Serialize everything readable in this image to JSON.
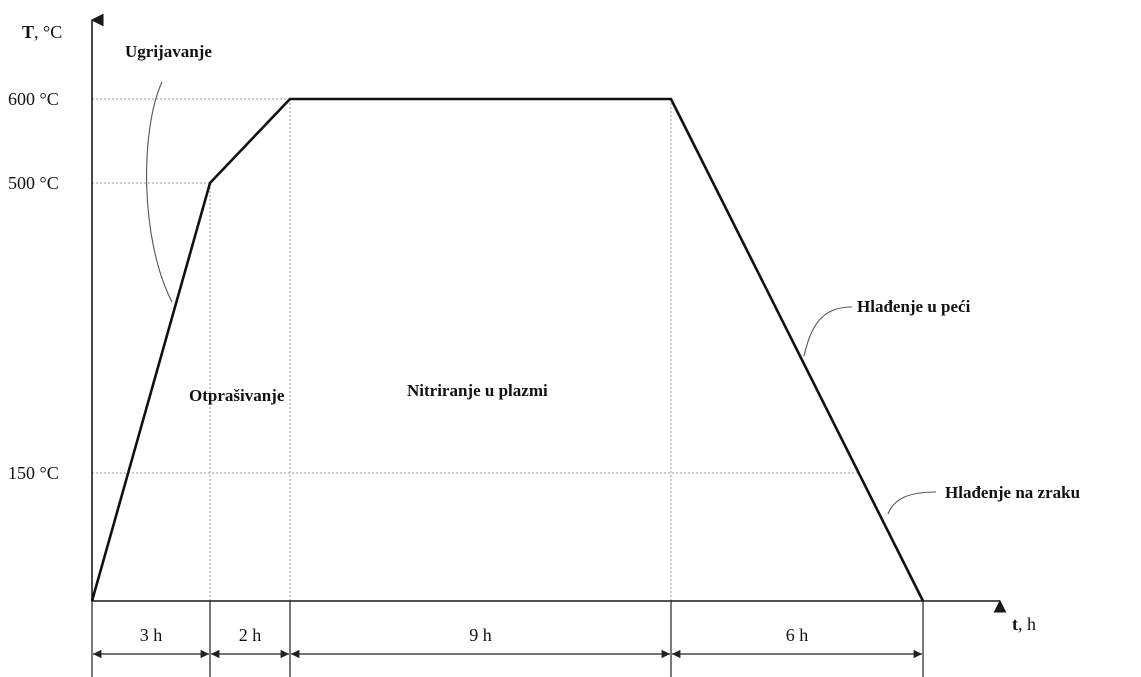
{
  "axes": {
    "y_label_main": "T",
    "y_label_unit": ", °C",
    "x_label_main": "t",
    "x_label_unit": ", h"
  },
  "temperature_levels": [
    {
      "value": 600,
      "label": "600 °C"
    },
    {
      "value": 500,
      "label": "500 °C"
    },
    {
      "value": 150,
      "label": "150 °C"
    }
  ],
  "profile_points": [
    {
      "t": 0,
      "T": 0
    },
    {
      "t": 3,
      "T": 500
    },
    {
      "t": 5,
      "T": 600
    },
    {
      "t": 14,
      "T": 600
    },
    {
      "t": 20,
      "T": 0
    }
  ],
  "durations": [
    {
      "hours": 3,
      "label": "3 h"
    },
    {
      "hours": 2,
      "label": "2 h"
    },
    {
      "hours": 9,
      "label": "9 h"
    },
    {
      "hours": 6,
      "label": "6 h"
    }
  ],
  "stages": {
    "heating": "Ugrijavanje",
    "sputtering": "Otprašivanje",
    "nitriding": "Nitriranje u plazmi",
    "furnace_cooling": "Hlađenje u peći",
    "air_cooling": "Hlađenje na zraku"
  }
}
